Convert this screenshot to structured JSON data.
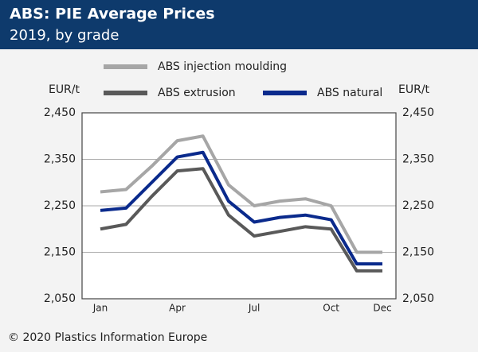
{
  "chart_data": {
    "type": "line",
    "title": "ABS: PIE Average Prices",
    "subtitle": "2019, by grade",
    "y_label": "EUR/t",
    "y2_label": "EUR/t",
    "source": "© 2020 Plastics Information Europe",
    "categories": [
      "Jan",
      null,
      null,
      "Apr",
      null,
      null,
      "Jul",
      null,
      null,
      "Oct",
      null,
      "Dec"
    ],
    "series": [
      {
        "name": "ABS injection moulding",
        "color": "#a6a6a6",
        "values": [
          2280,
          2285,
          2335,
          2390,
          2400,
          2295,
          2250,
          2260,
          2265,
          2250,
          2150,
          2150
        ]
      },
      {
        "name": "ABS extrusion",
        "color": "#595959",
        "values": [
          2200,
          2210,
          2270,
          2325,
          2330,
          2230,
          2185,
          2195,
          2205,
          2200,
          2110,
          2110
        ]
      },
      {
        "name": "ABS natural",
        "color": "#0a2a8c",
        "values": [
          2240,
          2245,
          2300,
          2355,
          2365,
          2260,
          2215,
          2225,
          2230,
          2220,
          2125,
          2125
        ]
      }
    ],
    "ylim": [
      2050,
      2450
    ],
    "yticks": [
      {
        "value": 2050,
        "label": "2,050"
      },
      {
        "value": 2150,
        "label": "2,150"
      },
      {
        "value": 2250,
        "label": "2,250"
      },
      {
        "value": 2350,
        "label": "2,350"
      },
      {
        "value": 2450,
        "label": "2,450"
      }
    ],
    "y2lim": [
      2050,
      2450
    ],
    "y2ticks": [
      {
        "value": 2050,
        "label": "2,050"
      },
      {
        "value": 2150,
        "label": "2,150"
      },
      {
        "value": 2250,
        "label": "2,250"
      },
      {
        "value": 2350,
        "label": "2,350"
      },
      {
        "value": 2450,
        "label": "2,450"
      }
    ],
    "grid": true
  }
}
